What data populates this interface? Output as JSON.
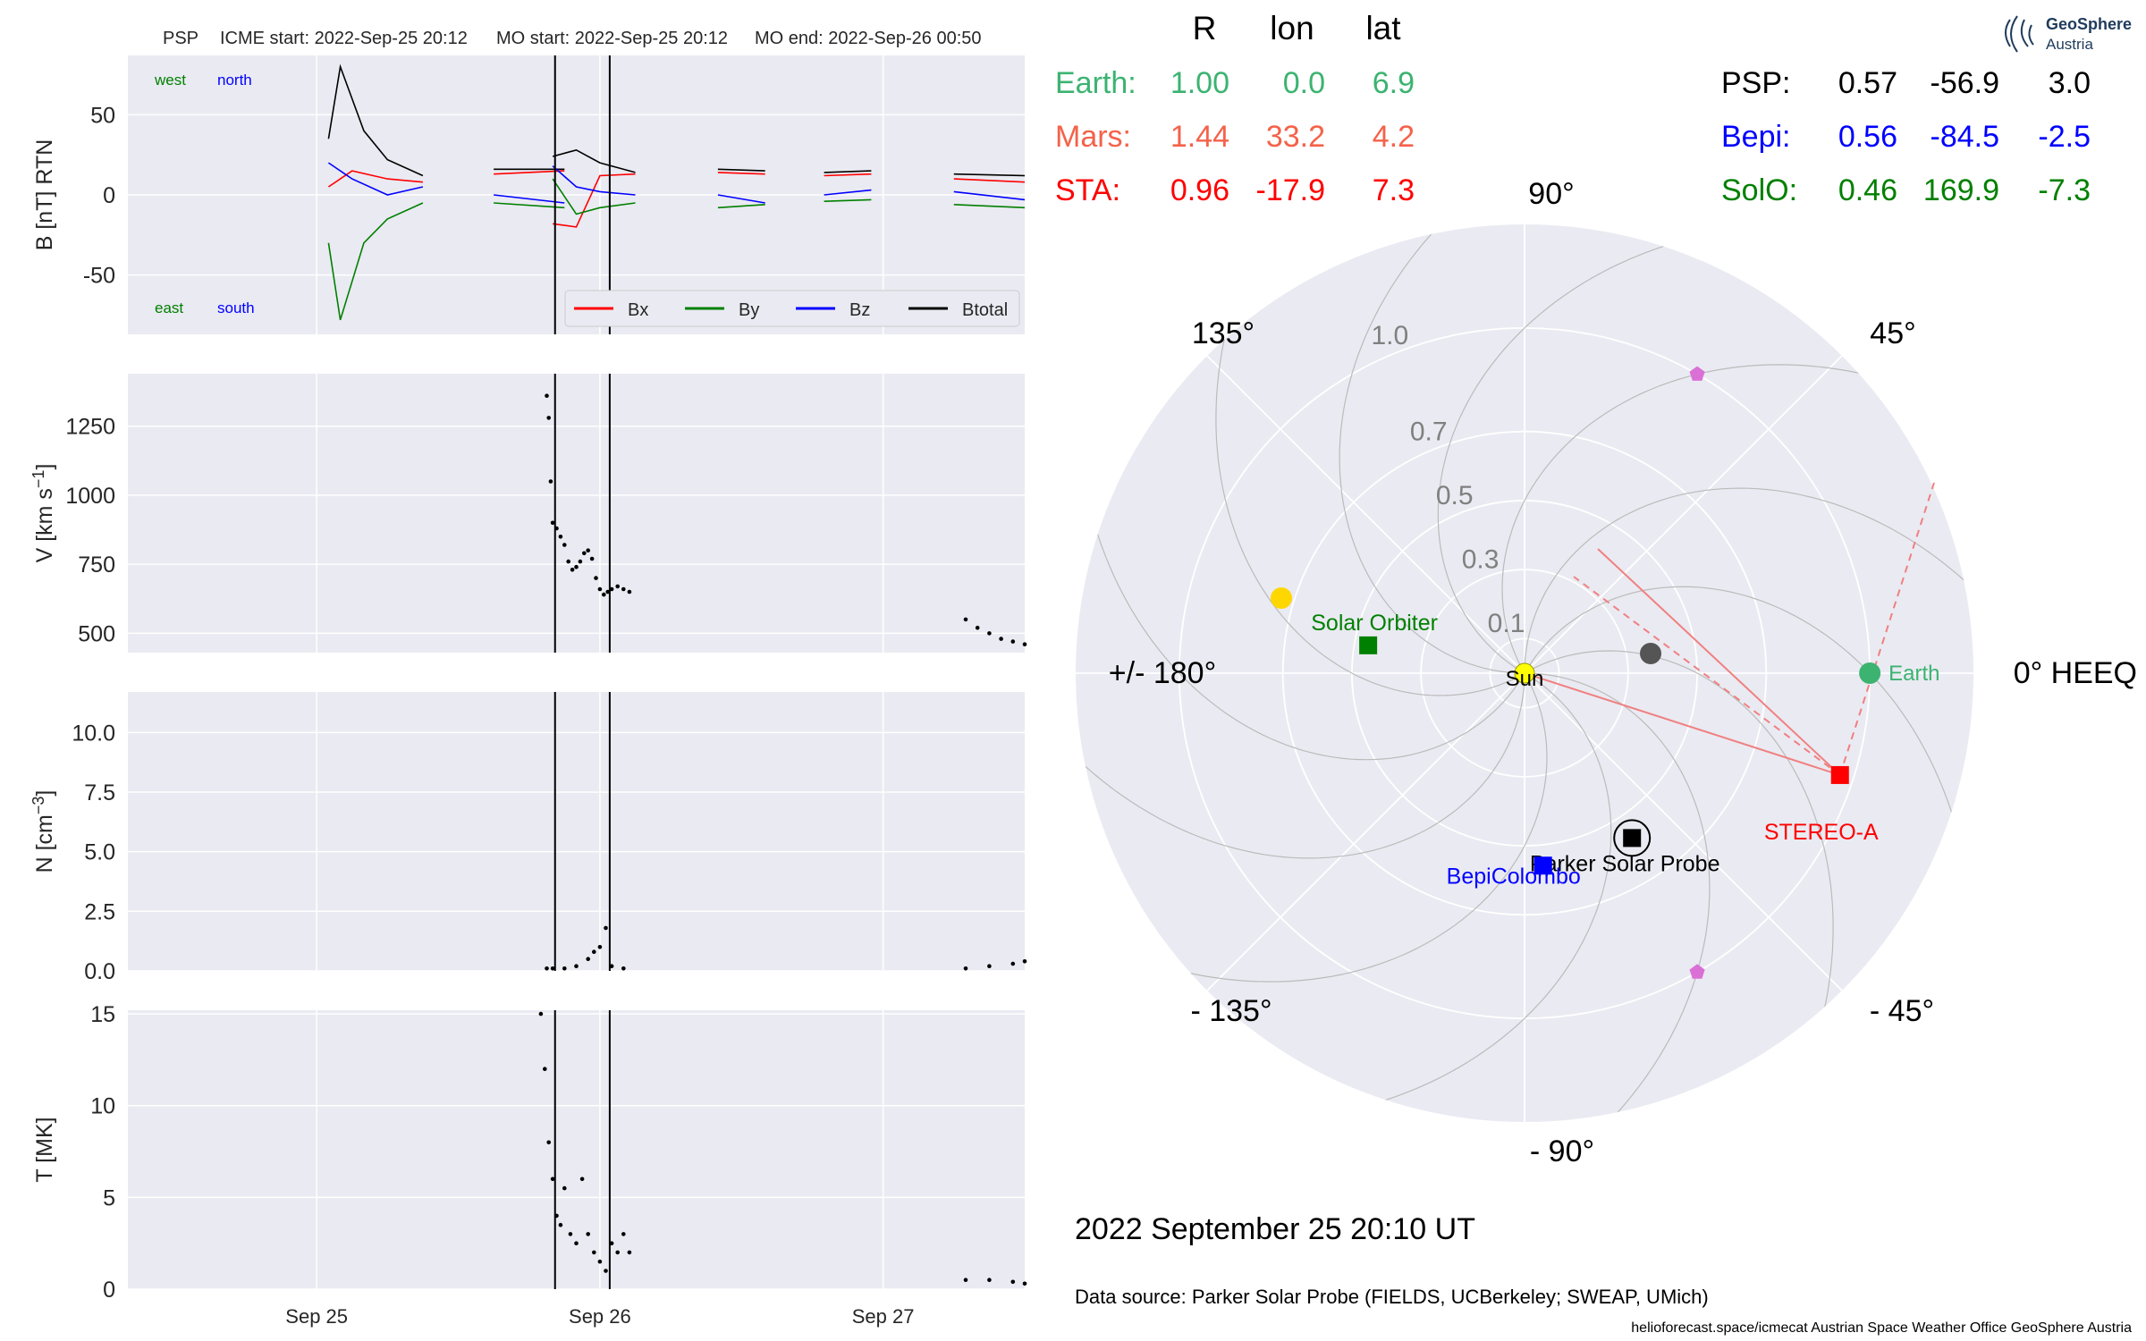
{
  "header": {
    "spacecraft": "PSP",
    "icme_start": "ICME start: 2022-Sep-25 20:12",
    "mo_start": "MO start: 2022-Sep-25 20:12",
    "mo_end": "MO end: 2022-Sep-26 00:50"
  },
  "logo": {
    "line1": "GeoSphere",
    "line2": "Austria"
  },
  "positions_table": {
    "headers": [
      "R",
      "lon",
      "lat"
    ],
    "left_rows": [
      {
        "name": "Earth:",
        "r": "1.00",
        "lon": "0.0",
        "lat": "6.9",
        "color": "#3cb371"
      },
      {
        "name": "Mars:",
        "r": "1.44",
        "lon": "33.2",
        "lat": "4.2",
        "color": "#f4624a"
      },
      {
        "name": "STA:",
        "r": "0.96",
        "lon": "-17.9",
        "lat": "7.3",
        "color": "#ff0000"
      }
    ],
    "right_rows": [
      {
        "name": "PSP:",
        "r": "0.57",
        "lon": "-56.9",
        "lat": "3.0",
        "color": "#000000"
      },
      {
        "name": "Bepi:",
        "r": "0.56",
        "lon": "-84.5",
        "lat": "-2.5",
        "color": "#0000ff"
      },
      {
        "name": "SolO:",
        "r": "0.46",
        "lon": "169.9",
        "lat": "-7.3",
        "color": "#008000"
      }
    ]
  },
  "polar": {
    "angle_labels": [
      "90°",
      "45°",
      "0° HEEQ",
      "- 45°",
      "- 90°",
      "- 135°",
      "+/- 180°",
      "135°"
    ],
    "radial_labels": [
      "0.1",
      "0.3",
      "0.5",
      "0.7",
      "1.0"
    ],
    "body_labels": {
      "sun": "Sun",
      "earth": "Earth",
      "solo": "Solar Orbiter",
      "psp": "Parker Solar Probe",
      "bepi": "BepiColombo",
      "sta": "STEREO-A"
    },
    "colors": {
      "earth": "#3cb371",
      "sta": "#ff0000",
      "psp": "#000000",
      "bepi": "#0000ff",
      "solo": "#008000",
      "mercury": "#555555",
      "venus": "#ffd700",
      "sun": "#ffff00",
      "l4l5": "#da70d6"
    }
  },
  "datetime": "2022 September 25  20:10 UT",
  "data_source": "Data source: Parker Solar Probe (FIELDS, UCBerkeley; SWEAP, UMich)",
  "footer": "helioforecast.space/icmecat   Austrian Space Weather Office   GeoSphere Austria",
  "chart_data": [
    {
      "type": "line",
      "panel": "magnetic field",
      "ylabel": "B [nT] RTN",
      "yticks": [
        50,
        0,
        -50
      ],
      "ylim": [
        -87,
        87
      ],
      "xlim": [
        "2022-09-24 08:00",
        "2022-09-27 12:00"
      ],
      "xticks": [
        "Sep 25",
        "Sep 26",
        "Sep 27"
      ],
      "annotations": [
        "west",
        "north",
        "east",
        "south"
      ],
      "legend": [
        "Bx",
        "By",
        "Bz",
        "Btotal"
      ],
      "legend_placement": "lower right",
      "vertical_lines": [
        "2022-09-25 20:12",
        "2022-09-26 00:50"
      ],
      "series": [
        {
          "name": "Btotal",
          "color": "#000000",
          "segments": [
            [
              [
                "2022-09-25 01:00",
                35
              ],
              [
                "2022-09-25 02:00",
                80
              ],
              [
                "2022-09-25 04:00",
                40
              ],
              [
                "2022-09-25 06:00",
                22
              ],
              [
                "2022-09-25 09:00",
                12
              ]
            ],
            [
              [
                "2022-09-25 15:00",
                16
              ],
              [
                "2022-09-25 21:00",
                16
              ]
            ],
            [
              [
                "2022-09-25 20:00",
                24
              ],
              [
                "2022-09-25 22:00",
                28
              ],
              [
                "2022-09-26 00:00",
                20
              ],
              [
                "2022-09-26 03:00",
                14
              ]
            ],
            [
              [
                "2022-09-26 10:00",
                16
              ],
              [
                "2022-09-26 14:00",
                15
              ]
            ],
            [
              [
                "2022-09-26 19:00",
                14
              ],
              [
                "2022-09-26 23:00",
                15
              ]
            ],
            [
              [
                "2022-09-27 06:00",
                13
              ],
              [
                "2022-09-27 12:00",
                12
              ]
            ]
          ]
        },
        {
          "name": "Bx",
          "color": "#ff0000",
          "segments": [
            [
              [
                "2022-09-25 01:00",
                5
              ],
              [
                "2022-09-25 03:00",
                15
              ],
              [
                "2022-09-25 06:00",
                10
              ],
              [
                "2022-09-25 09:00",
                8
              ]
            ],
            [
              [
                "2022-09-25 15:00",
                13
              ],
              [
                "2022-09-25 21:00",
                15
              ]
            ],
            [
              [
                "2022-09-25 20:00",
                -18
              ],
              [
                "2022-09-25 22:00",
                -20
              ],
              [
                "2022-09-26 00:00",
                12
              ],
              [
                "2022-09-26 03:00",
                13
              ]
            ],
            [
              [
                "2022-09-26 10:00",
                14
              ],
              [
                "2022-09-26 14:00",
                13
              ]
            ],
            [
              [
                "2022-09-26 19:00",
                12
              ],
              [
                "2022-09-26 23:00",
                13
              ]
            ],
            [
              [
                "2022-09-27 06:00",
                10
              ],
              [
                "2022-09-27 12:00",
                8
              ]
            ]
          ]
        },
        {
          "name": "By",
          "color": "#008000",
          "segments": [
            [
              [
                "2022-09-25 01:00",
                -30
              ],
              [
                "2022-09-25 02:00",
                -78
              ],
              [
                "2022-09-25 04:00",
                -30
              ],
              [
                "2022-09-25 06:00",
                -15
              ],
              [
                "2022-09-25 09:00",
                -5
              ]
            ],
            [
              [
                "2022-09-25 15:00",
                -5
              ],
              [
                "2022-09-25 21:00",
                -8
              ]
            ],
            [
              [
                "2022-09-25 20:00",
                10
              ],
              [
                "2022-09-25 22:00",
                -12
              ],
              [
                "2022-09-26 00:00",
                -8
              ],
              [
                "2022-09-26 03:00",
                -5
              ]
            ],
            [
              [
                "2022-09-26 10:00",
                -8
              ],
              [
                "2022-09-26 14:00",
                -6
              ]
            ],
            [
              [
                "2022-09-26 19:00",
                -4
              ],
              [
                "2022-09-26 23:00",
                -3
              ]
            ],
            [
              [
                "2022-09-27 06:00",
                -6
              ],
              [
                "2022-09-27 12:00",
                -8
              ]
            ]
          ]
        },
        {
          "name": "Bz",
          "color": "#0000ff",
          "segments": [
            [
              [
                "2022-09-25 01:00",
                20
              ],
              [
                "2022-09-25 03:00",
                10
              ],
              [
                "2022-09-25 06:00",
                0
              ],
              [
                "2022-09-25 09:00",
                5
              ]
            ],
            [
              [
                "2022-09-25 15:00",
                0
              ],
              [
                "2022-09-25 21:00",
                -5
              ]
            ],
            [
              [
                "2022-09-25 20:00",
                18
              ],
              [
                "2022-09-25 22:00",
                5
              ],
              [
                "2022-09-26 00:00",
                2
              ],
              [
                "2022-09-26 03:00",
                0
              ]
            ],
            [
              [
                "2022-09-26 10:00",
                0
              ],
              [
                "2022-09-26 14:00",
                -5
              ]
            ],
            [
              [
                "2022-09-26 19:00",
                0
              ],
              [
                "2022-09-26 23:00",
                3
              ]
            ],
            [
              [
                "2022-09-27 06:00",
                2
              ],
              [
                "2022-09-27 12:00",
                -3
              ]
            ]
          ]
        }
      ]
    },
    {
      "type": "scatter",
      "panel": "speed",
      "ylabel": "V [km s^-1]",
      "yticks": [
        1250,
        1000,
        750,
        500
      ],
      "ylim": [
        430,
        1440
      ],
      "xticks": [
        "Sep 25",
        "Sep 26",
        "Sep 27"
      ],
      "vertical_lines": [
        "2022-09-25 20:12",
        "2022-09-26 00:50"
      ],
      "series": [
        {
          "name": "V",
          "color": "#000000",
          "points": [
            [
              "2022-09-25 19:30",
              1360
            ],
            [
              "2022-09-25 19:40",
              1280
            ],
            [
              "2022-09-25 19:50",
              1050
            ],
            [
              "2022-09-25 20:00",
              900
            ],
            [
              "2022-09-25 20:20",
              880
            ],
            [
              "2022-09-25 20:40",
              850
            ],
            [
              "2022-09-25 21:00",
              820
            ],
            [
              "2022-09-25 21:20",
              760
            ],
            [
              "2022-09-25 21:40",
              730
            ],
            [
              "2022-09-25 22:00",
              740
            ],
            [
              "2022-09-25 22:20",
              760
            ],
            [
              "2022-09-25 22:40",
              790
            ],
            [
              "2022-09-25 23:00",
              800
            ],
            [
              "2022-09-25 23:20",
              770
            ],
            [
              "2022-09-25 23:40",
              700
            ],
            [
              "2022-09-26 00:00",
              660
            ],
            [
              "2022-09-26 00:20",
              640
            ],
            [
              "2022-09-26 00:40",
              650
            ],
            [
              "2022-09-26 01:00",
              660
            ],
            [
              "2022-09-26 01:30",
              670
            ],
            [
              "2022-09-26 02:00",
              660
            ],
            [
              "2022-09-26 02:30",
              650
            ],
            [
              "2022-09-27 07:00",
              550
            ],
            [
              "2022-09-27 08:00",
              520
            ],
            [
              "2022-09-27 09:00",
              500
            ],
            [
              "2022-09-27 10:00",
              480
            ],
            [
              "2022-09-27 11:00",
              470
            ],
            [
              "2022-09-27 12:00",
              460
            ]
          ]
        }
      ]
    },
    {
      "type": "scatter",
      "panel": "density",
      "ylabel": "N [cm^-3]",
      "yticks": [
        10.0,
        7.5,
        5.0,
        2.5,
        0.0
      ],
      "ylim": [
        0,
        11.7
      ],
      "xticks": [
        "Sep 25",
        "Sep 26",
        "Sep 27"
      ],
      "vertical_lines": [
        "2022-09-25 20:12",
        "2022-09-26 00:50"
      ],
      "series": [
        {
          "name": "N",
          "color": "#000000",
          "points": [
            [
              "2022-09-25 19:30",
              0.1
            ],
            [
              "2022-09-25 20:00",
              0.1
            ],
            [
              "2022-09-25 21:00",
              0.1
            ],
            [
              "2022-09-25 22:00",
              0.2
            ],
            [
              "2022-09-25 23:00",
              0.5
            ],
            [
              "2022-09-25 23:30",
              0.8
            ],
            [
              "2022-09-26 00:00",
              1.0
            ],
            [
              "2022-09-26 00:30",
              1.8
            ],
            [
              "2022-09-26 01:00",
              0.2
            ],
            [
              "2022-09-26 02:00",
              0.1
            ],
            [
              "2022-09-27 07:00",
              0.1
            ],
            [
              "2022-09-27 09:00",
              0.2
            ],
            [
              "2022-09-27 11:00",
              0.3
            ],
            [
              "2022-09-27 12:00",
              0.4
            ]
          ]
        }
      ]
    },
    {
      "type": "scatter",
      "panel": "temperature",
      "ylabel": "T [MK]",
      "yticks": [
        15,
        10,
        5,
        0
      ],
      "ylim": [
        0,
        15.2
      ],
      "xticks": [
        "Sep 25",
        "Sep 26",
        "Sep 27"
      ],
      "vertical_lines": [
        "2022-09-25 20:12",
        "2022-09-26 00:50"
      ],
      "series": [
        {
          "name": "T",
          "color": "#000000",
          "points": [
            [
              "2022-09-25 19:00",
              15
            ],
            [
              "2022-09-25 19:20",
              12
            ],
            [
              "2022-09-25 19:40",
              8
            ],
            [
              "2022-09-25 20:00",
              6
            ],
            [
              "2022-09-25 20:20",
              4
            ],
            [
              "2022-09-25 20:40",
              3.5
            ],
            [
              "2022-09-25 21:00",
              5.5
            ],
            [
              "2022-09-25 21:30",
              3
            ],
            [
              "2022-09-25 22:00",
              2.5
            ],
            [
              "2022-09-25 22:30",
              6
            ],
            [
              "2022-09-25 23:00",
              3
            ],
            [
              "2022-09-25 23:30",
              2
            ],
            [
              "2022-09-26 00:00",
              1.5
            ],
            [
              "2022-09-26 00:30",
              1
            ],
            [
              "2022-09-26 01:00",
              2.5
            ],
            [
              "2022-09-26 01:30",
              2
            ],
            [
              "2022-09-26 02:00",
              3
            ],
            [
              "2022-09-26 02:30",
              2
            ],
            [
              "2022-09-27 07:00",
              0.5
            ],
            [
              "2022-09-27 09:00",
              0.5
            ],
            [
              "2022-09-27 11:00",
              0.4
            ],
            [
              "2022-09-27 12:00",
              0.3
            ]
          ]
        }
      ]
    }
  ]
}
